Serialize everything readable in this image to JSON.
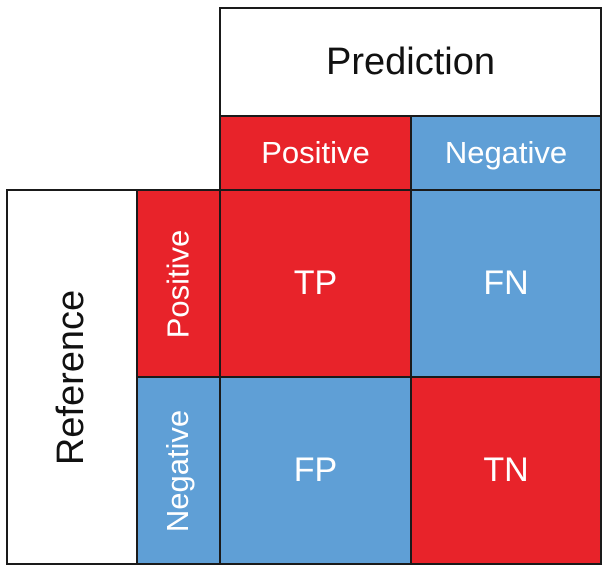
{
  "prediction": {
    "title": "Prediction",
    "positive_label": "Positive",
    "negative_label": "Negative"
  },
  "reference": {
    "title": "Reference",
    "positive_label": "Positive",
    "negative_label": "Negative"
  },
  "matrix": {
    "tp": "TP",
    "fn": "FN",
    "fp": "FP",
    "tn": "TN"
  },
  "colors": {
    "positive": "#e8232a",
    "negative": "#5f9fd6",
    "border": "#1a1a1a",
    "title_background": "#ffffff"
  }
}
